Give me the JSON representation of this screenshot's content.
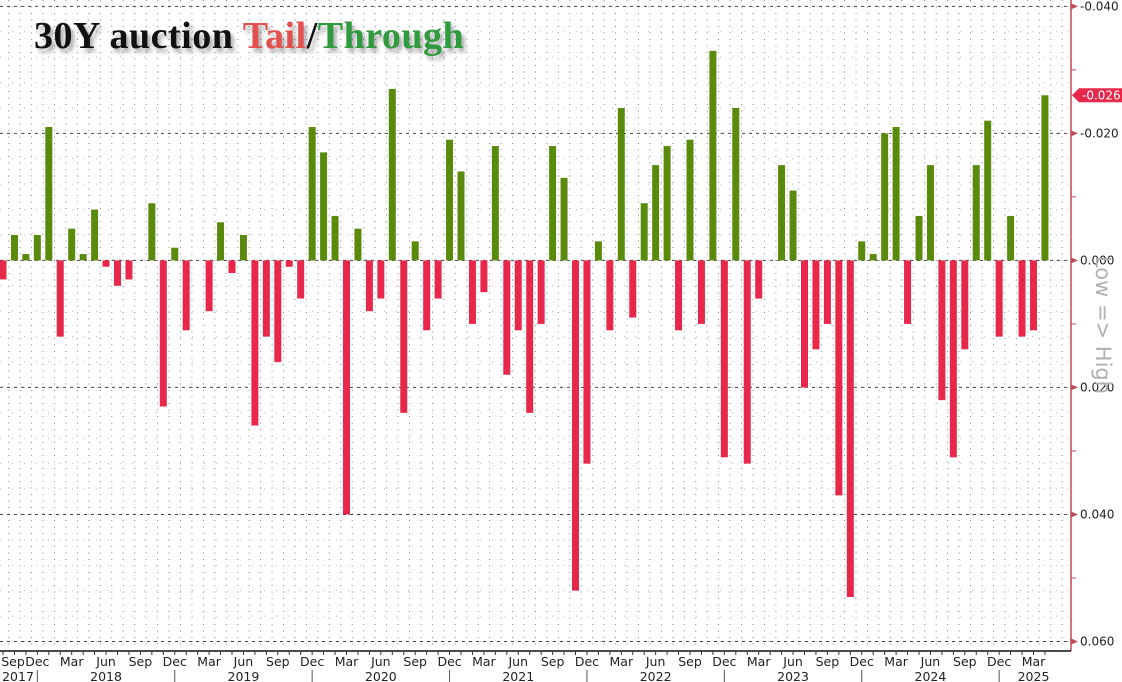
{
  "chart_data": {
    "type": "bar",
    "title_parts": [
      "30Y auction ",
      "Tail",
      "/",
      "Through"
    ],
    "side_label": "Low => High",
    "ylim": [
      -0.041,
      0.0615
    ],
    "y_inverted": true,
    "y_ticks": [
      "-0.040",
      "-0.020",
      "0.000",
      "0.020",
      "0.040",
      "0.060"
    ],
    "y_tick_values": [
      -0.04,
      -0.02,
      0,
      0.02,
      0.04,
      0.06
    ],
    "y_minor_values": [
      -0.03,
      -0.01,
      0.01,
      0.03,
      0.05
    ],
    "last_value_label": "-0.026",
    "last_value": -0.026,
    "grid": true,
    "colors": {
      "tail": "#e8284a",
      "through": "#5a8a0c",
      "axis": "#c0485a",
      "tag": "#e8284a"
    },
    "categories": [
      "2017-09",
      "2017-10",
      "2017-11",
      "2017-12",
      "2018-01",
      "2018-02",
      "2018-03",
      "2018-04",
      "2018-05",
      "2018-06",
      "2018-07",
      "2018-08",
      "2018-09",
      "2018-10",
      "2018-11",
      "2018-12",
      "2019-01",
      "2019-02",
      "2019-03",
      "2019-04",
      "2019-05",
      "2019-06",
      "2019-07",
      "2019-08",
      "2019-09",
      "2019-10",
      "2019-11",
      "2019-12",
      "2020-01",
      "2020-02",
      "2020-03",
      "2020-04",
      "2020-05",
      "2020-06",
      "2020-07",
      "2020-08",
      "2020-09",
      "2020-10",
      "2020-11",
      "2020-12",
      "2021-01",
      "2021-02",
      "2021-03",
      "2021-04",
      "2021-05",
      "2021-06",
      "2021-07",
      "2021-08",
      "2021-09",
      "2021-10",
      "2021-11",
      "2021-12",
      "2022-01",
      "2022-02",
      "2022-03",
      "2022-04",
      "2022-05",
      "2022-06",
      "2022-07",
      "2022-08",
      "2022-09",
      "2022-10",
      "2022-11",
      "2022-12",
      "2023-01",
      "2023-02",
      "2023-03",
      "2023-04",
      "2023-05",
      "2023-06",
      "2023-07",
      "2023-08",
      "2023-09",
      "2023-10",
      "2023-11",
      "2023-12",
      "2024-01",
      "2024-02",
      "2024-03",
      "2024-04",
      "2024-05",
      "2024-06",
      "2024-07",
      "2024-08",
      "2024-09",
      "2024-10",
      "2024-11",
      "2024-12",
      "2025-01",
      "2025-02",
      "2025-03",
      "2025-04"
    ],
    "values": [
      0.003,
      -0.004,
      -0.001,
      -0.004,
      -0.021,
      0.012,
      -0.005,
      -0.001,
      -0.008,
      0.001,
      0.004,
      0.003,
      0,
      -0.009,
      0.023,
      -0.002,
      0.011,
      0,
      0.008,
      -0.006,
      0.002,
      -0.004,
      0.026,
      0.012,
      0.016,
      0.001,
      0.006,
      -0.021,
      -0.017,
      -0.007,
      0.04,
      -0.005,
      0.008,
      0.006,
      -0.027,
      0.024,
      -0.003,
      0.011,
      0.006,
      -0.019,
      -0.014,
      0.01,
      0.005,
      -0.018,
      0.018,
      0.011,
      0.024,
      0.01,
      -0.018,
      -0.013,
      0.052,
      0.032,
      -0.003,
      0.011,
      -0.024,
      0.009,
      -0.009,
      -0.015,
      -0.018,
      0.011,
      -0.019,
      0.01,
      -0.033,
      0.031,
      -0.024,
      0.032,
      0.006,
      0,
      -0.015,
      -0.011,
      0.02,
      0.014,
      0.01,
      0.037,
      0.053,
      -0.003,
      -0.001,
      -0.02,
      -0.021,
      0.01,
      -0.007,
      -0.015,
      0.022,
      0.031,
      0.014,
      -0.015,
      -0.022,
      0.012,
      -0.007,
      0.012,
      0.011,
      -0.026
    ],
    "x_month_labels": [
      {
        "index": 0,
        "label": "Sep"
      },
      {
        "index": 3,
        "label": "Dec"
      },
      {
        "index": 6,
        "label": "Mar"
      },
      {
        "index": 9,
        "label": "Jun"
      },
      {
        "index": 12,
        "label": "Sep"
      },
      {
        "index": 15,
        "label": "Dec"
      },
      {
        "index": 18,
        "label": "Mar"
      },
      {
        "index": 21,
        "label": "Jun"
      },
      {
        "index": 24,
        "label": "Sep"
      },
      {
        "index": 27,
        "label": "Dec"
      },
      {
        "index": 30,
        "label": "Mar"
      },
      {
        "index": 33,
        "label": "Jun"
      },
      {
        "index": 36,
        "label": "Sep"
      },
      {
        "index": 39,
        "label": "Dec"
      },
      {
        "index": 42,
        "label": "Mar"
      },
      {
        "index": 45,
        "label": "Jun"
      },
      {
        "index": 48,
        "label": "Sep"
      },
      {
        "index": 51,
        "label": "Dec"
      },
      {
        "index": 54,
        "label": "Mar"
      },
      {
        "index": 57,
        "label": "Jun"
      },
      {
        "index": 60,
        "label": "Sep"
      },
      {
        "index": 63,
        "label": "Dec"
      },
      {
        "index": 66,
        "label": "Mar"
      },
      {
        "index": 69,
        "label": "Jun"
      },
      {
        "index": 72,
        "label": "Sep"
      },
      {
        "index": 75,
        "label": "Dec"
      },
      {
        "index": 78,
        "label": "Mar"
      },
      {
        "index": 81,
        "label": "Jun"
      },
      {
        "index": 84,
        "label": "Sep"
      },
      {
        "index": 87,
        "label": "Dec"
      },
      {
        "index": 90,
        "label": "Mar"
      }
    ],
    "x_year_labels": [
      {
        "label": "2017",
        "from": 0,
        "to": 0
      },
      {
        "label": "2018",
        "from": 3,
        "to": 15
      },
      {
        "label": "2019",
        "from": 15,
        "to": 27
      },
      {
        "label": "2020",
        "from": 27,
        "to": 39
      },
      {
        "label": "2021",
        "from": 39,
        "to": 51
      },
      {
        "label": "2022",
        "from": 51,
        "to": 63
      },
      {
        "label": "2023",
        "from": 63,
        "to": 75
      },
      {
        "label": "2024",
        "from": 75,
        "to": 87
      },
      {
        "label": "2025",
        "from": 90,
        "to": 90
      }
    ],
    "year_separators": [
      3,
      15,
      27,
      39,
      51,
      63,
      75,
      87
    ]
  }
}
